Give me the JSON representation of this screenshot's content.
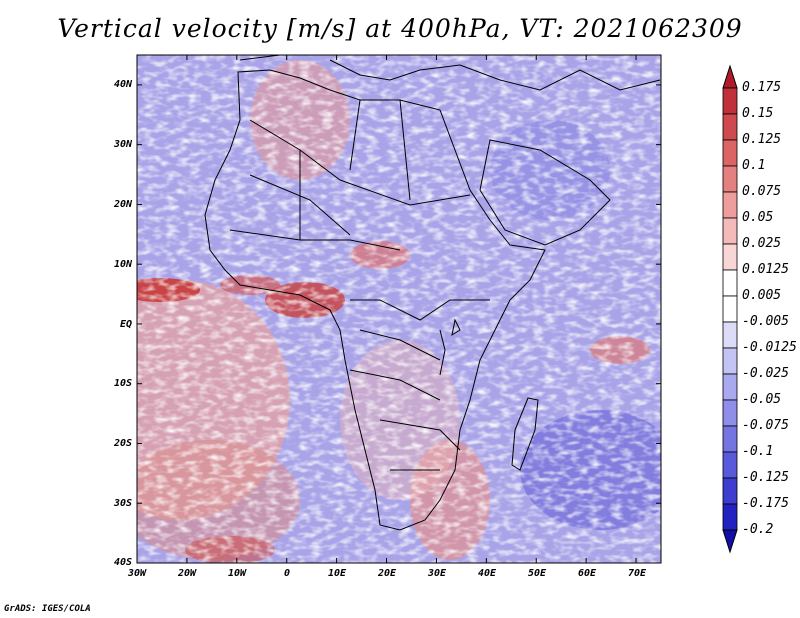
{
  "title": "Vertical velocity [m/s] at 400hPa, VT: 2021062309",
  "map": {
    "lat_labels": [
      "40N",
      "30N",
      "20N",
      "10N",
      "EQ",
      "10S",
      "20S",
      "30S",
      "40S"
    ],
    "lon_labels": [
      "30W",
      "20W",
      "10W",
      "0",
      "10E",
      "20E",
      "30E",
      "40E",
      "50E",
      "60E",
      "70E"
    ],
    "lat_range": [
      -40,
      45
    ],
    "lon_range": [
      -30,
      75
    ]
  },
  "colorbar": {
    "levels": [
      "0.175",
      "0.15",
      "0.125",
      "0.1",
      "0.075",
      "0.05",
      "0.025",
      "0.0125",
      "0.005",
      "-0.005",
      "-0.0125",
      "-0.025",
      "-0.05",
      "-0.075",
      "-0.1",
      "-0.125",
      "-0.175",
      "-0.2"
    ],
    "colors": [
      "#b2182b",
      "#c0303b",
      "#cf4a4e",
      "#dc6464",
      "#e58080",
      "#ee9c9c",
      "#f4b9b9",
      "#f9d6d6",
      "#ffffff",
      "#ffffff",
      "#dcdcf8",
      "#c3c3f4",
      "#a9a9ef",
      "#8f8fea",
      "#7474e3",
      "#5959dc",
      "#3d3dd2",
      "#2222c3",
      "#1010a8"
    ]
  },
  "footer": "GrADS: IGES/COLA"
}
